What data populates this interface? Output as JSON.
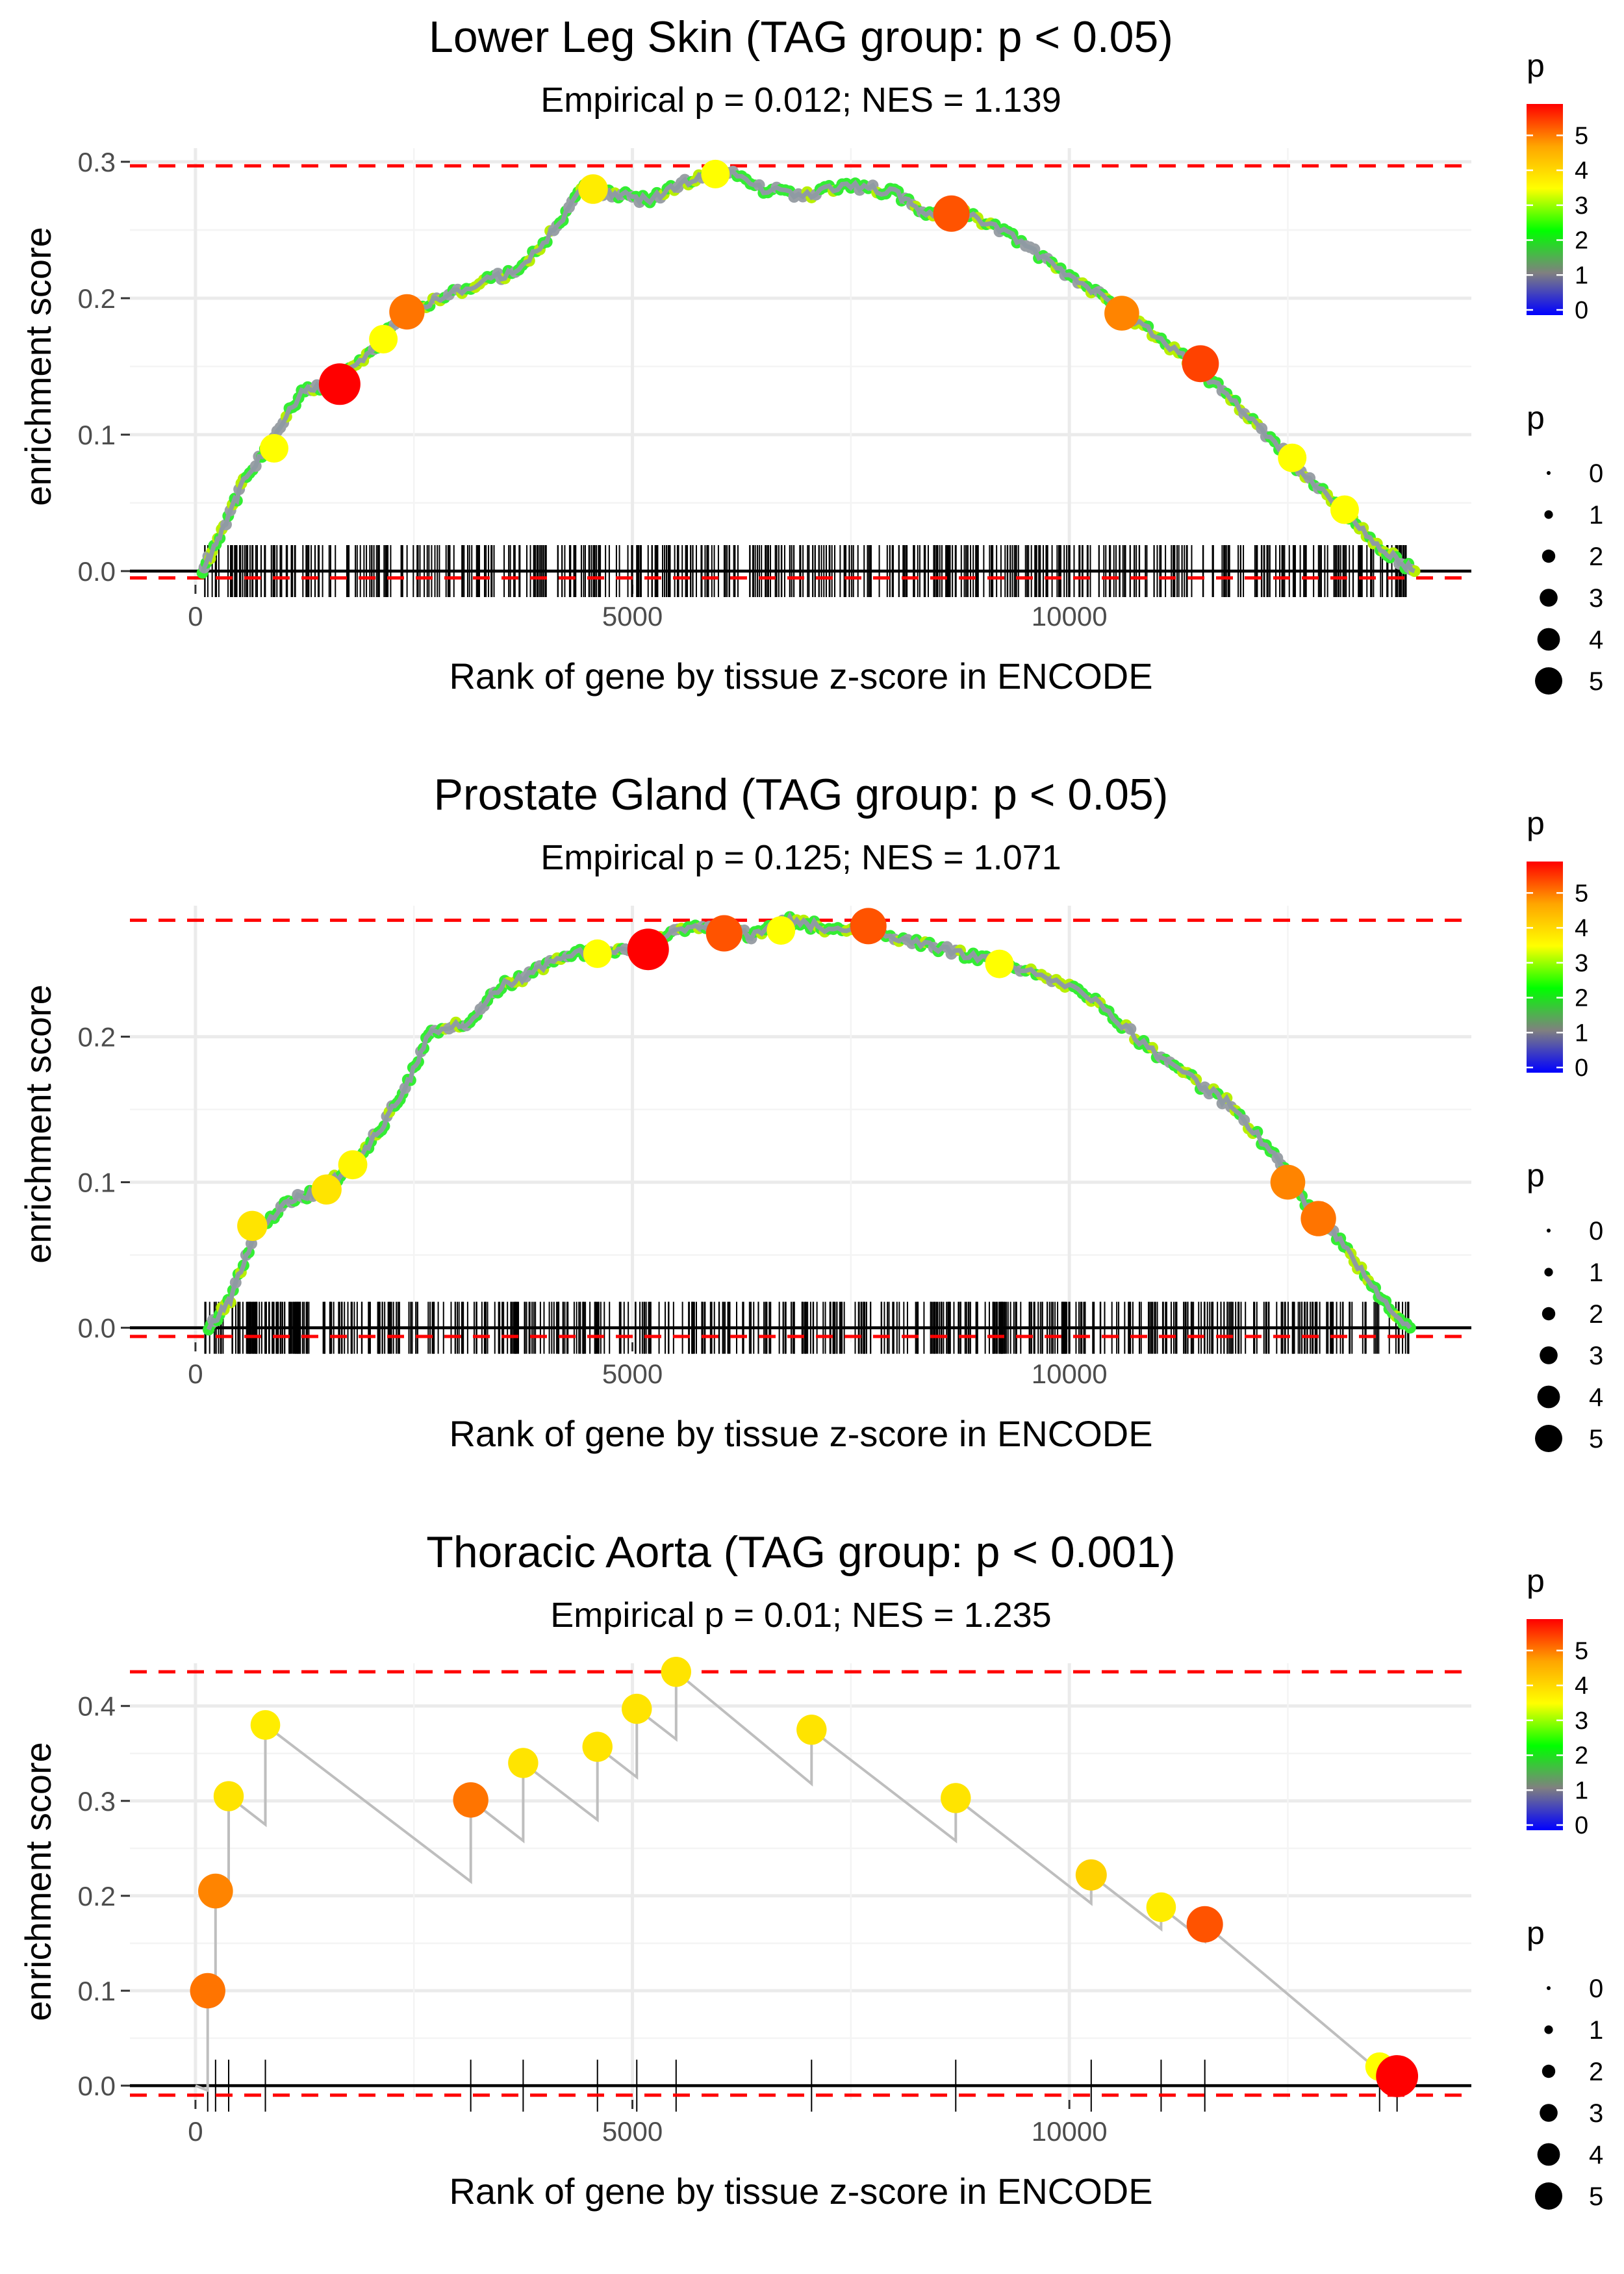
{
  "legend": {
    "color_title": "p",
    "size_title": "p",
    "color_ticks": [
      "0",
      "1",
      "2",
      "3",
      "4",
      "5"
    ],
    "size_ticks": [
      "0",
      "1",
      "2",
      "3",
      "4",
      "5"
    ],
    "colors": [
      "#0000ff",
      "#808080",
      "#00ff00",
      "#ffff00",
      "#ffa500",
      "#ff0000"
    ]
  },
  "styles": {
    "line_color": "#bebebe",
    "dash_color": "#ff0000",
    "rug_color": "#000000",
    "grid_color": "#ebebeb"
  },
  "chart_data": [
    {
      "type": "line",
      "title": "Lower Leg Skin (TAG group: p < 0.05)",
      "subtitle": "Empirical p = 0.012; NES = 1.139",
      "xlabel": "Rank of gene by tissue z-score in ENCODE",
      "ylabel": "enrichment score",
      "xlim": [
        -750,
        14600
      ],
      "ylim": [
        -0.01,
        0.31
      ],
      "xticks": [
        0,
        5000,
        10000
      ],
      "xtick_labels": [
        "0",
        "5000",
        "10000"
      ],
      "yticks": [
        0,
        0.1,
        0.2,
        0.3
      ],
      "ytick_labels": [
        "0.0",
        "0.1",
        "0.2",
        "0.3"
      ],
      "dashed_lines": [
        0.297,
        -0.005
      ],
      "curve": [
        [
          80,
          0
        ],
        [
          300,
          0.03
        ],
        [
          550,
          0.065
        ],
        [
          900,
          0.1
        ],
        [
          1250,
          0.133
        ],
        [
          1600,
          0.138
        ],
        [
          2000,
          0.16
        ],
        [
          2400,
          0.19
        ],
        [
          2800,
          0.2
        ],
        [
          3300,
          0.213
        ],
        [
          3700,
          0.22
        ],
        [
          4100,
          0.25
        ],
        [
          4450,
          0.282
        ],
        [
          4800,
          0.276
        ],
        [
          5200,
          0.272
        ],
        [
          5600,
          0.285
        ],
        [
          6000,
          0.295
        ],
        [
          6500,
          0.28
        ],
        [
          7000,
          0.276
        ],
        [
          7500,
          0.283
        ],
        [
          8000,
          0.277
        ],
        [
          8400,
          0.262
        ],
        [
          8800,
          0.262
        ],
        [
          9300,
          0.248
        ],
        [
          9800,
          0.225
        ],
        [
          10300,
          0.205
        ],
        [
          10700,
          0.186
        ],
        [
          11200,
          0.163
        ],
        [
          11700,
          0.135
        ],
        [
          12200,
          0.104
        ],
        [
          12700,
          0.07
        ],
        [
          13200,
          0.04
        ],
        [
          13600,
          0.015
        ],
        [
          13950,
          0.0
        ]
      ],
      "points": [
        {
          "x": 1650,
          "y": 0.137,
          "p": 5.5
        },
        {
          "x": 2420,
          "y": 0.19,
          "p": 4.3
        },
        {
          "x": 8650,
          "y": 0.262,
          "p": 4.5
        },
        {
          "x": 10600,
          "y": 0.189,
          "p": 4.2
        },
        {
          "x": 11500,
          "y": 0.152,
          "p": 4.6
        },
        {
          "x": 4550,
          "y": 0.28,
          "p": 3.2
        },
        {
          "x": 2150,
          "y": 0.17,
          "p": 3.0
        },
        {
          "x": 900,
          "y": 0.09,
          "p": 3.0
        },
        {
          "x": 5950,
          "y": 0.291,
          "p": 3.0
        },
        {
          "x": 12550,
          "y": 0.083,
          "p": 3.0
        },
        {
          "x": 13150,
          "y": 0.045,
          "p": 3.0
        }
      ],
      "rug_seed": 11,
      "rug_count": 520
    },
    {
      "type": "line",
      "title": "Prostate Gland (TAG group: p < 0.05)",
      "subtitle": "Empirical p = 0.125; NES = 1.071",
      "xlabel": "Rank of gene by tissue z-score in ENCODE",
      "ylabel": "enrichment score",
      "xlim": [
        -750,
        14600
      ],
      "ylim": [
        -0.01,
        0.29
      ],
      "xticks": [
        0,
        5000,
        10000
      ],
      "xtick_labels": [
        "0",
        "5000",
        "10000"
      ],
      "yticks": [
        0,
        0.1,
        0.2
      ],
      "ytick_labels": [
        "0.0",
        "0.1",
        "0.2"
      ],
      "dashed_lines": [
        0.28,
        -0.006
      ],
      "curve": [
        [
          150,
          0
        ],
        [
          400,
          0.02
        ],
        [
          700,
          0.068
        ],
        [
          1100,
          0.088
        ],
        [
          1450,
          0.095
        ],
        [
          1800,
          0.112
        ],
        [
          2100,
          0.135
        ],
        [
          2400,
          0.165
        ],
        [
          2700,
          0.205
        ],
        [
          3100,
          0.208
        ],
        [
          3500,
          0.235
        ],
        [
          3900,
          0.245
        ],
        [
          4300,
          0.258
        ],
        [
          4800,
          0.257
        ],
        [
          5200,
          0.262
        ],
        [
          5600,
          0.275
        ],
        [
          6000,
          0.272
        ],
        [
          6400,
          0.27
        ],
        [
          6800,
          0.28
        ],
        [
          7200,
          0.275
        ],
        [
          7700,
          0.276
        ],
        [
          8200,
          0.265
        ],
        [
          8700,
          0.258
        ],
        [
          9200,
          0.252
        ],
        [
          9800,
          0.24
        ],
        [
          10300,
          0.225
        ],
        [
          10800,
          0.197
        ],
        [
          11300,
          0.175
        ],
        [
          11800,
          0.155
        ],
        [
          12300,
          0.122
        ],
        [
          12700,
          0.085
        ],
        [
          13100,
          0.06
        ],
        [
          13500,
          0.025
        ],
        [
          13900,
          0.0
        ]
      ],
      "points": [
        {
          "x": 5180,
          "y": 0.26,
          "p": 5.5
        },
        {
          "x": 6050,
          "y": 0.271,
          "p": 4.5
        },
        {
          "x": 7700,
          "y": 0.276,
          "p": 4.5
        },
        {
          "x": 12500,
          "y": 0.1,
          "p": 4.2
        },
        {
          "x": 12850,
          "y": 0.075,
          "p": 4.3
        },
        {
          "x": 650,
          "y": 0.07,
          "p": 3.3
        },
        {
          "x": 1500,
          "y": 0.095,
          "p": 3.3
        },
        {
          "x": 1800,
          "y": 0.112,
          "p": 3.1
        },
        {
          "x": 4600,
          "y": 0.257,
          "p": 3.0
        },
        {
          "x": 6700,
          "y": 0.273,
          "p": 3.0
        },
        {
          "x": 9200,
          "y": 0.25,
          "p": 3.0
        }
      ],
      "rug_seed": 23,
      "rug_count": 560
    },
    {
      "type": "line",
      "title": "Thoracic Aorta (TAG group: p < 0.001)",
      "subtitle": "Empirical p = 0.01; NES = 1.235",
      "xlabel": "Rank of gene by tissue z-score in ENCODE",
      "ylabel": "enrichment score",
      "xlim": [
        -750,
        14600
      ],
      "ylim": [
        -0.015,
        0.445
      ],
      "xticks": [
        0,
        5000,
        10000
      ],
      "xtick_labels": [
        "0",
        "5000",
        "10000"
      ],
      "yticks": [
        0,
        0.1,
        0.2,
        0.3,
        0.4
      ],
      "ytick_labels": [
        "0.0",
        "0.1",
        "0.2",
        "0.3",
        "0.4"
      ],
      "dashed_lines": [
        0.436,
        -0.01
      ],
      "curve": [
        [
          0,
          0
        ],
        [
          140,
          -0.005
        ],
        [
          140,
          0.1
        ],
        [
          230,
          0.1
        ],
        [
          230,
          0.205
        ],
        [
          380,
          0.197
        ],
        [
          380,
          0.305
        ],
        [
          800,
          0.275
        ],
        [
          800,
          0.38
        ],
        [
          3150,
          0.215
        ],
        [
          3150,
          0.301
        ],
        [
          3750,
          0.258
        ],
        [
          3750,
          0.34
        ],
        [
          4600,
          0.28
        ],
        [
          4600,
          0.357
        ],
        [
          5050,
          0.325
        ],
        [
          5050,
          0.397
        ],
        [
          5500,
          0.365
        ],
        [
          5500,
          0.436
        ],
        [
          7050,
          0.318
        ],
        [
          7050,
          0.375
        ],
        [
          8700,
          0.258
        ],
        [
          8700,
          0.303
        ],
        [
          10250,
          0.192
        ],
        [
          10250,
          0.222
        ],
        [
          11050,
          0.165
        ],
        [
          11050,
          0.188
        ],
        [
          11550,
          0.152
        ],
        [
          11550,
          0.17
        ],
        [
          13550,
          0.015
        ],
        [
          13550,
          0.02
        ],
        [
          13700,
          0.01
        ],
        [
          13750,
          0.01
        ]
      ],
      "points": [
        {
          "x": 140,
          "y": 0.1,
          "p": 4.3
        },
        {
          "x": 230,
          "y": 0.205,
          "p": 4.2
        },
        {
          "x": 380,
          "y": 0.305,
          "p": 3.3
        },
        {
          "x": 800,
          "y": 0.38,
          "p": 3.2
        },
        {
          "x": 3150,
          "y": 0.301,
          "p": 4.3
        },
        {
          "x": 3750,
          "y": 0.34,
          "p": 3.3
        },
        {
          "x": 4600,
          "y": 0.357,
          "p": 3.3
        },
        {
          "x": 5050,
          "y": 0.397,
          "p": 3.3
        },
        {
          "x": 5500,
          "y": 0.436,
          "p": 3.3
        },
        {
          "x": 7050,
          "y": 0.375,
          "p": 3.3
        },
        {
          "x": 8700,
          "y": 0.303,
          "p": 3.3
        },
        {
          "x": 10250,
          "y": 0.222,
          "p": 3.5
        },
        {
          "x": 11050,
          "y": 0.188,
          "p": 3.2
        },
        {
          "x": 11550,
          "y": 0.17,
          "p": 4.5
        },
        {
          "x": 13550,
          "y": 0.02,
          "p": 3.0
        },
        {
          "x": 13750,
          "y": 0.01,
          "p": 5.6
        }
      ],
      "rug": [
        140,
        230,
        380,
        800,
        3150,
        3750,
        4600,
        5050,
        5500,
        7050,
        8700,
        10250,
        11050,
        11550,
        13550,
        13750
      ]
    }
  ]
}
